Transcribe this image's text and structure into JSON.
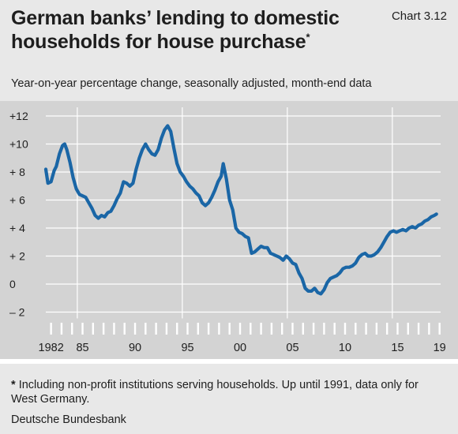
{
  "header": {
    "title_line1": "German banks’ lending to domestic",
    "title_line2": "households for house purchase",
    "title_marker": "*",
    "chart_number": "Chart 3.12",
    "subtitle": "Year-on-year percentage change, seasonally adjusted, month-end data"
  },
  "footer": {
    "footnote_marker": "*",
    "footnote": "Including non-profit institutions serving households. Up until 1991, data only for West Germany.",
    "source": "Deutsche Bundesbank"
  },
  "colors": {
    "line": "#1a66a6",
    "plot_background": "#d3d3d3",
    "panel_background": "#e8e8e8",
    "grid": "#ffffff"
  },
  "chart_data": {
    "type": "line",
    "title": "German banks’ lending to domestic households for house purchase",
    "ylabel": "Year-on-year percentage change",
    "xlim": [
      1982,
      2019.6
    ],
    "ylim": [
      -2,
      12
    ],
    "grid": true,
    "y_ticks": [
      12,
      10,
      8,
      6,
      4,
      2,
      0,
      -2
    ],
    "y_tick_labels": [
      "+12",
      "+10",
      "+ 8",
      "+ 6",
      "+ 4",
      "+ 2",
      "0",
      "– 2"
    ],
    "x_tick_labels": [
      {
        "year": 1982,
        "label": "1982"
      },
      {
        "year": 1985,
        "label": "85"
      },
      {
        "year": 1990,
        "label": "90"
      },
      {
        "year": 1995,
        "label": "95"
      },
      {
        "year": 2000,
        "label": "00"
      },
      {
        "year": 2005,
        "label": "05"
      },
      {
        "year": 2010,
        "label": "10"
      },
      {
        "year": 2015,
        "label": "15"
      },
      {
        "year": 2019,
        "label": "19"
      }
    ],
    "vertical_gridlines": [
      1985,
      1995,
      2005,
      2015
    ],
    "series": [
      {
        "points": [
          [
            1982.0,
            8.2
          ],
          [
            1982.2,
            7.2
          ],
          [
            1982.5,
            7.3
          ],
          [
            1982.8,
            8.1
          ],
          [
            1983.0,
            8.4
          ],
          [
            1983.3,
            9.3
          ],
          [
            1983.6,
            9.9
          ],
          [
            1983.8,
            10.0
          ],
          [
            1984.0,
            9.6
          ],
          [
            1984.3,
            8.7
          ],
          [
            1984.6,
            7.6
          ],
          [
            1984.9,
            6.8
          ],
          [
            1985.2,
            6.4
          ],
          [
            1985.5,
            6.3
          ],
          [
            1985.8,
            6.2
          ],
          [
            1986.1,
            5.8
          ],
          [
            1986.4,
            5.4
          ],
          [
            1986.7,
            4.9
          ],
          [
            1987.0,
            4.7
          ],
          [
            1987.3,
            4.9
          ],
          [
            1987.6,
            4.8
          ],
          [
            1987.9,
            5.1
          ],
          [
            1988.2,
            5.2
          ],
          [
            1988.5,
            5.6
          ],
          [
            1988.8,
            6.1
          ],
          [
            1989.1,
            6.5
          ],
          [
            1989.4,
            7.3
          ],
          [
            1989.7,
            7.2
          ],
          [
            1990.0,
            7.0
          ],
          [
            1990.3,
            7.2
          ],
          [
            1990.6,
            8.2
          ],
          [
            1990.9,
            9.0
          ],
          [
            1991.2,
            9.6
          ],
          [
            1991.5,
            10.0
          ],
          [
            1991.8,
            9.6
          ],
          [
            1992.1,
            9.3
          ],
          [
            1992.4,
            9.2
          ],
          [
            1992.7,
            9.6
          ],
          [
            1993.0,
            10.4
          ],
          [
            1993.3,
            11.0
          ],
          [
            1993.6,
            11.3
          ],
          [
            1993.9,
            10.9
          ],
          [
            1994.2,
            9.7
          ],
          [
            1994.5,
            8.6
          ],
          [
            1994.8,
            8.0
          ],
          [
            1995.1,
            7.7
          ],
          [
            1995.4,
            7.3
          ],
          [
            1995.7,
            7.0
          ],
          [
            1996.0,
            6.8
          ],
          [
            1996.3,
            6.5
          ],
          [
            1996.6,
            6.3
          ],
          [
            1996.9,
            5.8
          ],
          [
            1997.2,
            5.6
          ],
          [
            1997.5,
            5.8
          ],
          [
            1997.8,
            6.2
          ],
          [
            1998.1,
            6.7
          ],
          [
            1998.4,
            7.3
          ],
          [
            1998.7,
            7.7
          ],
          [
            1998.9,
            8.6
          ],
          [
            1999.2,
            7.5
          ],
          [
            1999.5,
            6.0
          ],
          [
            1999.8,
            5.3
          ],
          [
            2000.1,
            4.0
          ],
          [
            2000.4,
            3.7
          ],
          [
            2000.7,
            3.6
          ],
          [
            2001.0,
            3.4
          ],
          [
            2001.3,
            3.3
          ],
          [
            2001.6,
            2.2
          ],
          [
            2001.9,
            2.3
          ],
          [
            2002.2,
            2.5
          ],
          [
            2002.5,
            2.7
          ],
          [
            2002.8,
            2.6
          ],
          [
            2003.1,
            2.6
          ],
          [
            2003.4,
            2.2
          ],
          [
            2003.7,
            2.1
          ],
          [
            2004.0,
            2.0
          ],
          [
            2004.3,
            1.9
          ],
          [
            2004.6,
            1.7
          ],
          [
            2004.9,
            2.0
          ],
          [
            2005.2,
            1.8
          ],
          [
            2005.5,
            1.5
          ],
          [
            2005.8,
            1.4
          ],
          [
            2006.1,
            0.8
          ],
          [
            2006.4,
            0.4
          ],
          [
            2006.7,
            -0.3
          ],
          [
            2007.0,
            -0.5
          ],
          [
            2007.3,
            -0.5
          ],
          [
            2007.6,
            -0.3
          ],
          [
            2007.9,
            -0.6
          ],
          [
            2008.2,
            -0.7
          ],
          [
            2008.5,
            -0.4
          ],
          [
            2008.8,
            0.1
          ],
          [
            2009.1,
            0.4
          ],
          [
            2009.4,
            0.5
          ],
          [
            2009.7,
            0.6
          ],
          [
            2010.0,
            0.8
          ],
          [
            2010.3,
            1.1
          ],
          [
            2010.6,
            1.2
          ],
          [
            2010.9,
            1.2
          ],
          [
            2011.2,
            1.3
          ],
          [
            2011.5,
            1.5
          ],
          [
            2011.8,
            1.9
          ],
          [
            2012.1,
            2.1
          ],
          [
            2012.4,
            2.2
          ],
          [
            2012.7,
            2.0
          ],
          [
            2013.0,
            2.0
          ],
          [
            2013.3,
            2.1
          ],
          [
            2013.6,
            2.3
          ],
          [
            2013.9,
            2.6
          ],
          [
            2014.2,
            3.0
          ],
          [
            2014.5,
            3.4
          ],
          [
            2014.8,
            3.7
          ],
          [
            2015.1,
            3.8
          ],
          [
            2015.4,
            3.7
          ],
          [
            2015.7,
            3.8
          ],
          [
            2016.0,
            3.9
          ],
          [
            2016.3,
            3.8
          ],
          [
            2016.6,
            4.0
          ],
          [
            2016.9,
            4.1
          ],
          [
            2017.2,
            4.0
          ],
          [
            2017.5,
            4.2
          ],
          [
            2017.8,
            4.3
          ],
          [
            2018.1,
            4.5
          ],
          [
            2018.4,
            4.6
          ],
          [
            2018.7,
            4.8
          ],
          [
            2019.0,
            4.9
          ],
          [
            2019.2,
            5.0
          ]
        ]
      }
    ]
  }
}
